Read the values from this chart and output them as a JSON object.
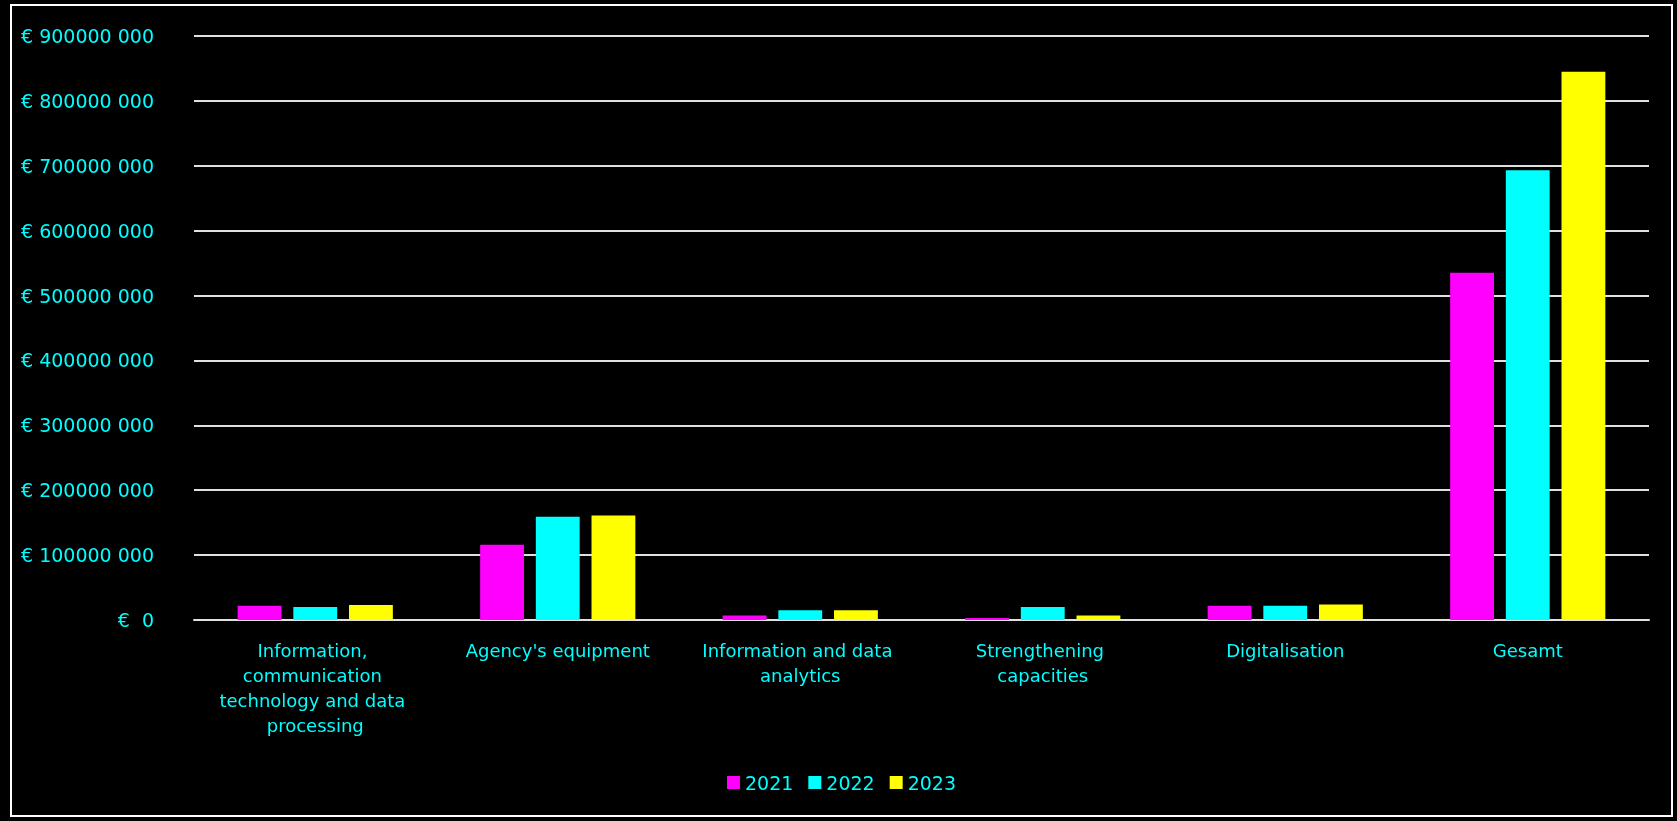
{
  "chart_data": {
    "type": "bar",
    "categories": [
      "Information, communication technology and data processing",
      "Agency's equipment",
      "Information and data analytics",
      "Strengthening capacities",
      "Digitalisation",
      "Gesamt"
    ],
    "series": [
      {
        "name": "2021",
        "color": "#ff00ff",
        "values": [
          22000000,
          116000000,
          7000000,
          3000000,
          22000000,
          535000000
        ]
      },
      {
        "name": "2022",
        "color": "#00ffff",
        "values": [
          20000000,
          159000000,
          15000000,
          20000000,
          22000000,
          693000000
        ]
      },
      {
        "name": "2023",
        "color": "#ffff00",
        "values": [
          23000000,
          161000000,
          15000000,
          7000000,
          24000000,
          845000000
        ]
      }
    ],
    "ylim": [
      0,
      900000000
    ],
    "yticks": [
      {
        "value": 0,
        "label": "€  0"
      },
      {
        "value": 100000000,
        "label": "€ 100000 000"
      },
      {
        "value": 200000000,
        "label": "€ 200000 000"
      },
      {
        "value": 300000000,
        "label": "€ 300000 000"
      },
      {
        "value": 400000000,
        "label": "€ 400000 000"
      },
      {
        "value": 500000000,
        "label": "€ 500000 000"
      },
      {
        "value": 600000000,
        "label": "€ 600000 000"
      },
      {
        "value": 700000000,
        "label": "€ 700000 000"
      },
      {
        "value": 800000000,
        "label": "€ 800000 000"
      },
      {
        "value": 900000000,
        "label": "€ 900000 000"
      }
    ],
    "grid": "y",
    "legend": "bottom"
  }
}
